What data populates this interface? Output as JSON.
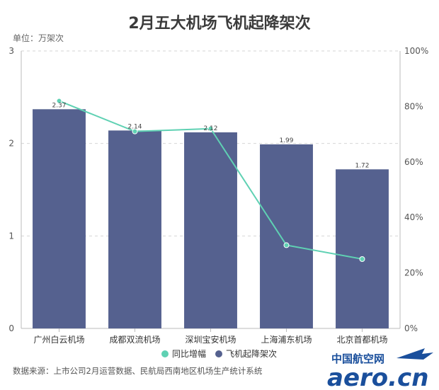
{
  "chart_data": {
    "type": "bar",
    "title": "2月五大机场飞机起降架次",
    "unit_label": "单位：万架次",
    "categories": [
      "广州白云机场",
      "成都双流机场",
      "深圳宝安机场",
      "上海浦东机场",
      "北京首都机场"
    ],
    "series": [
      {
        "name": "飞机起降架次",
        "type": "bar",
        "axis": "left",
        "color": "#55618f",
        "values": [
          2.37,
          2.14,
          2.12,
          1.99,
          1.72
        ],
        "labels": [
          "2.37",
          "2.14",
          "2.12",
          "1.99",
          "1.72"
        ]
      },
      {
        "name": "同比增幅",
        "type": "line",
        "axis": "right",
        "color": "#5fd1b3",
        "values": [
          82,
          71,
          72,
          30,
          25
        ]
      }
    ],
    "y_left": {
      "min": 0,
      "max": 3,
      "ticks": [
        "0",
        "1",
        "2",
        "3"
      ]
    },
    "y_right": {
      "min": 0,
      "max": 100,
      "ticks": [
        "0%",
        "20%",
        "40%",
        "60%",
        "80%",
        "100%"
      ]
    },
    "grid": true,
    "legend_position": "bottom"
  },
  "footer": {
    "source": "数据来源：上市公司2月运营数据、民航局西南地区机场生产统计系统"
  },
  "watermark": {
    "chinese": "中国航空网",
    "english": "aero.cn"
  }
}
